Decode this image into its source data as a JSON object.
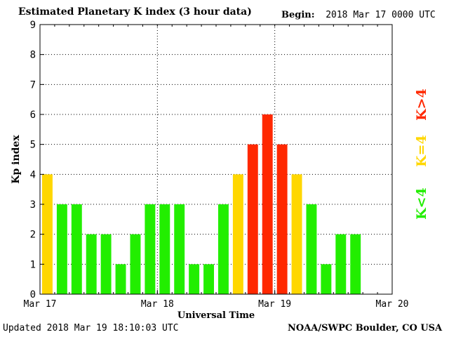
{
  "header": {
    "title": "Estimated Planetary K index (3 hour data)",
    "begin_label": "Begin:",
    "begin_value": "2018 Mar 17 0000 UTC"
  },
  "footer": {
    "updated": "Updated 2018 Mar 19 18:10:03 UTC",
    "credit": "NOAA/SWPC Boulder, CO USA"
  },
  "colors": {
    "below": "#22ee00",
    "equal": "#ffd700",
    "above": "#ff2800"
  },
  "legend": {
    "above": "K>4",
    "equal": "K=4",
    "below": "K<4"
  },
  "chart_data": {
    "type": "bar",
    "ylabel": "Kp index",
    "xlabel": "Universal Time",
    "ylim": [
      0,
      9
    ],
    "yticks": [
      "0",
      "1",
      "2",
      "3",
      "4",
      "5",
      "6",
      "7",
      "8",
      "9"
    ],
    "xticks": [
      "Mar 17",
      "Mar 18",
      "Mar 19",
      "Mar 20"
    ],
    "x_periods": 24,
    "grid": true,
    "values": [
      4,
      3,
      3,
      2,
      2,
      1,
      2,
      3,
      3,
      3,
      1,
      1,
      3,
      4,
      5,
      6,
      5,
      4,
      3,
      1,
      2,
      2
    ]
  }
}
